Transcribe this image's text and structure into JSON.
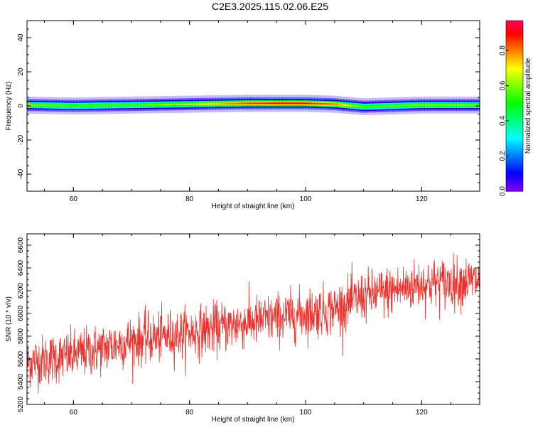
{
  "title": "C2E3.2025.115.02.06.E25",
  "chart_data": [
    {
      "type": "heatmap",
      "xlabel": "Height of straight line (km)",
      "ylabel": "Frequency (Hz)",
      "xlim": [
        52,
        130
      ],
      "ylim": [
        -50,
        50
      ],
      "xticks": [
        60,
        80,
        100,
        120
      ],
      "yticks": [
        40,
        20,
        0,
        -20,
        -40
      ],
      "colorbar": {
        "label": "Normalized spectral amplitude",
        "range": [
          0.0,
          0.97
        ],
        "ticks": [
          "0.0",
          "0.2",
          "0.4",
          "0.6",
          "0.8"
        ],
        "tick_values": [
          0.0,
          0.2,
          0.4,
          0.6,
          0.8
        ],
        "colormap": "rainbow"
      },
      "band": {
        "center_hz": [
          {
            "x": 52,
            "y": 0.5
          },
          {
            "x": 60,
            "y": 0.0
          },
          {
            "x": 70,
            "y": 0.5
          },
          {
            "x": 80,
            "y": 1.0
          },
          {
            "x": 90,
            "y": 1.5
          },
          {
            "x": 95,
            "y": 1.5
          },
          {
            "x": 100,
            "y": 1.5
          },
          {
            "x": 105,
            "y": 1.0
          },
          {
            "x": 110,
            "y": -0.5
          },
          {
            "x": 115,
            "y": 0.0
          },
          {
            "x": 120,
            "y": 0.5
          },
          {
            "x": 130,
            "y": 0.5
          }
        ],
        "peak_amplitude": [
          {
            "x": 52,
            "y": 0.85
          },
          {
            "x": 53,
            "y": 0.6
          },
          {
            "x": 60,
            "y": 0.55
          },
          {
            "x": 70,
            "y": 0.55
          },
          {
            "x": 80,
            "y": 0.65
          },
          {
            "x": 85,
            "y": 0.75
          },
          {
            "x": 90,
            "y": 0.85
          },
          {
            "x": 95,
            "y": 0.9
          },
          {
            "x": 100,
            "y": 0.9
          },
          {
            "x": 105,
            "y": 0.8
          },
          {
            "x": 110,
            "y": 0.55
          },
          {
            "x": 120,
            "y": 0.6
          },
          {
            "x": 130,
            "y": 0.6
          }
        ]
      }
    },
    {
      "type": "line",
      "xlabel": "Height of straight line (km)",
      "ylabel": "SNR (10 * v/v)",
      "xlim": [
        52,
        130
      ],
      "ylim": [
        5200,
        6700
      ],
      "xticks": [
        60,
        80,
        100,
        120
      ],
      "yticks": [
        5200,
        5400,
        5600,
        5800,
        6000,
        6200,
        6400,
        6600
      ],
      "color": "#f0302c",
      "series": [
        {
          "trend": [
            {
              "x": 52,
              "y": 5570
            },
            {
              "x": 60,
              "y": 5630
            },
            {
              "x": 70,
              "y": 5760
            },
            {
              "x": 80,
              "y": 5830
            },
            {
              "x": 90,
              "y": 5920
            },
            {
              "x": 100,
              "y": 6000
            },
            {
              "x": 105,
              "y": 6040
            },
            {
              "x": 110,
              "y": 6150
            },
            {
              "x": 115,
              "y": 6200
            },
            {
              "x": 120,
              "y": 6260
            },
            {
              "x": 125,
              "y": 6270
            },
            {
              "x": 130,
              "y": 6290
            }
          ],
          "noise_std": 110,
          "samples": 1500
        }
      ]
    }
  ]
}
